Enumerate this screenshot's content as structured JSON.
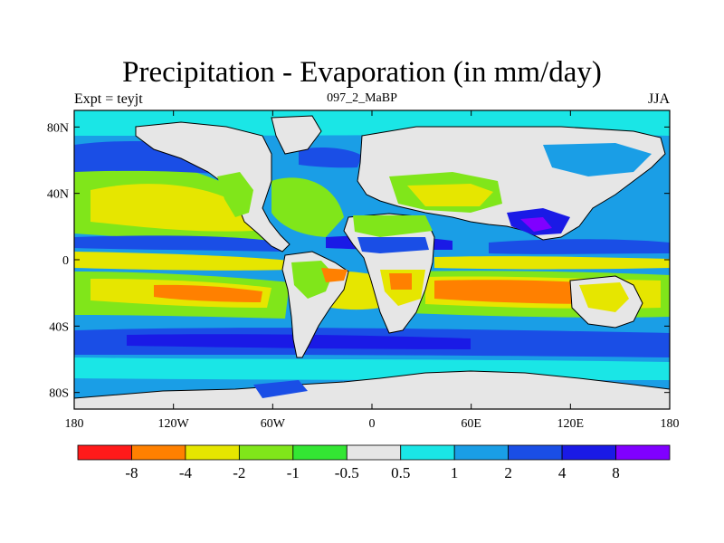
{
  "title": "Precipitation - Evaporation (in mm/day)",
  "subtitle_left": "Expt = teyjt",
  "subtitle_center": "097_2_MaBP",
  "subtitle_right": "JJA",
  "map": {
    "lon_ticks": [
      "180",
      "120W",
      "60W",
      "0",
      "60E",
      "120E",
      "180"
    ],
    "lat_ticks": [
      "80N",
      "40N",
      "0",
      "40S",
      "80S"
    ],
    "fill_colors": {
      "ocean_background": "#1a9ee6",
      "land_near_zero": "#e6e6e6",
      "coastline": "#000000"
    }
  },
  "colorbar": {
    "labels": [
      "-8",
      "-4",
      "-2",
      "-1",
      "-0.5",
      "0.5",
      "1",
      "2",
      "4",
      "8"
    ],
    "colors": [
      "#ff1a1a",
      "#ff8000",
      "#e6e600",
      "#80e61a",
      "#33e633",
      "#e6e6e6",
      "#1ae6e6",
      "#1a9ee6",
      "#1a4ee6",
      "#1a1ae6",
      "#8000ff"
    ]
  }
}
